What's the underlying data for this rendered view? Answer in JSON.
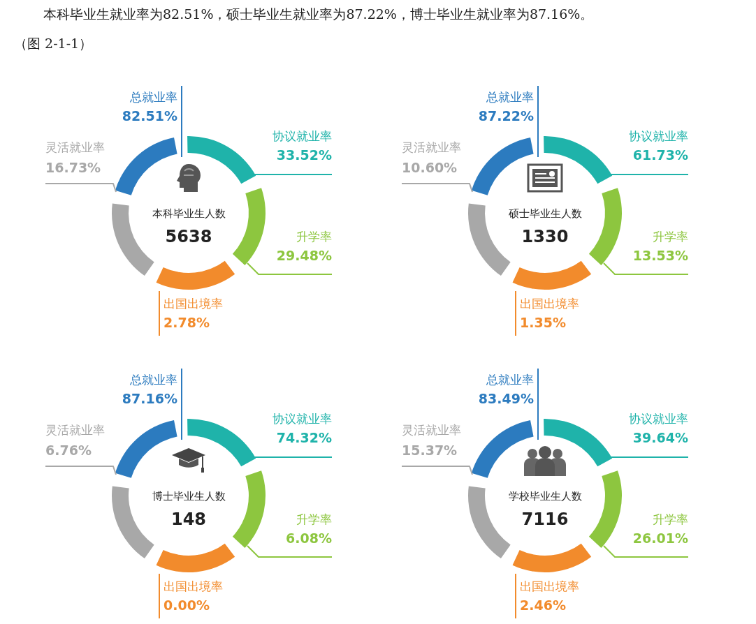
{
  "chart_data": [
    {
      "type": "other",
      "title": "本科毕业生人数",
      "annotations": [
        "5638",
        "本科毕业生就业率为82.51%，硕士毕业生就业率为87.22%，博士毕业生就业率为87.16%。",
        "（图 2-1-1）"
      ],
      "categories": [
        "总就业率",
        "协议就业率",
        "升学率",
        "出国出境率",
        "灵活就业率"
      ],
      "values": [
        82.51,
        33.52,
        29.48,
        2.78,
        16.73
      ],
      "value_labels": [
        "82.51%",
        "33.52%",
        "29.48%",
        "2.78%",
        "16.73%"
      ],
      "colors": [
        "#2c7bbf",
        "#1fb3aa",
        "#8dc63f",
        "#f28b2c",
        "#a8a8a8"
      ]
    },
    {
      "type": "other",
      "title": "硕士毕业生人数",
      "annotations": [
        "1330"
      ],
      "categories": [
        "总就业率",
        "协议就业率",
        "升学率",
        "出国出境率",
        "灵活就业率"
      ],
      "values": [
        87.22,
        61.73,
        13.53,
        1.35,
        10.6
      ],
      "value_labels": [
        "87.22%",
        "61.73%",
        "13.53%",
        "1.35%",
        "10.60%"
      ],
      "colors": [
        "#2c7bbf",
        "#1fb3aa",
        "#8dc63f",
        "#f28b2c",
        "#a8a8a8"
      ]
    },
    {
      "type": "other",
      "title": "博士毕业生人数",
      "annotations": [
        "148"
      ],
      "categories": [
        "总就业率",
        "协议就业率",
        "升学率",
        "出国出境率",
        "灵活就业率"
      ],
      "values": [
        87.16,
        74.32,
        6.08,
        0.0,
        6.76
      ],
      "value_labels": [
        "87.16%",
        "74.32%",
        "6.08%",
        "0.00%",
        "6.76%"
      ],
      "colors": [
        "#2c7bbf",
        "#1fb3aa",
        "#8dc63f",
        "#f28b2c",
        "#a8a8a8"
      ]
    },
    {
      "type": "other",
      "title": "学校毕业生人数",
      "annotations": [
        "7116"
      ],
      "categories": [
        "总就业率",
        "协议就业率",
        "升学率",
        "出国出境率",
        "灵活就业率"
      ],
      "values": [
        83.49,
        39.64,
        26.01,
        2.46,
        15.37
      ],
      "value_labels": [
        "83.49%",
        "39.64%",
        "26.01%",
        "2.46%",
        "15.37%"
      ],
      "colors": [
        "#2c7bbf",
        "#1fb3aa",
        "#8dc63f",
        "#f28b2c",
        "#a8a8a8"
      ]
    }
  ]
}
